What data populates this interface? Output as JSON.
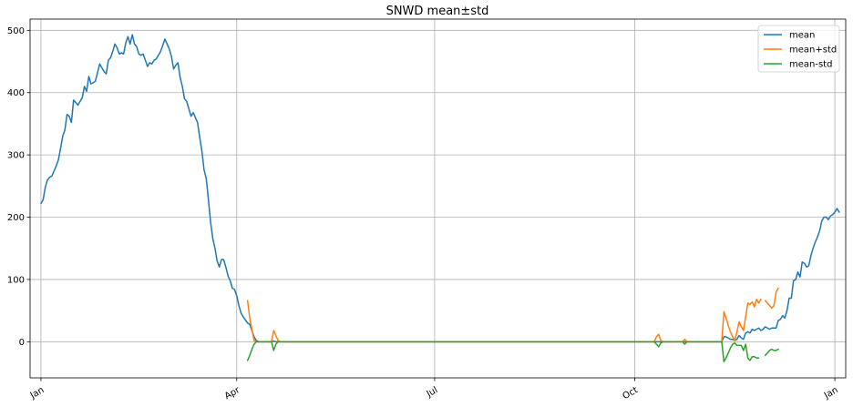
{
  "chart_data": {
    "type": "line",
    "title": "SNWD mean±std",
    "xlabel": "",
    "ylabel": "",
    "x_unit": "day_of_year",
    "xlim": [
      -5,
      370
    ],
    "ylim": [
      -58,
      518
    ],
    "grid": true,
    "legend_position": "top-right",
    "x_ticks": [
      {
        "label": "Jan",
        "x": 0
      },
      {
        "label": "Apr",
        "x": 90
      },
      {
        "label": "Jul",
        "x": 181
      },
      {
        "label": "Oct",
        "x": 273
      },
      {
        "label": "Jan",
        "x": 365
      }
    ],
    "y_ticks": [
      {
        "label": "0",
        "value": 0
      },
      {
        "label": "100",
        "value": 100
      },
      {
        "label": "200",
        "value": 200
      },
      {
        "label": "300",
        "value": 300
      },
      {
        "label": "400",
        "value": 400
      },
      {
        "label": "500",
        "value": 500
      }
    ],
    "series": [
      {
        "name": "mean",
        "color": "#1f77b4",
        "points": [
          [
            0,
            222
          ],
          [
            1,
            228
          ],
          [
            2,
            248
          ],
          [
            3,
            260
          ],
          [
            4,
            264
          ],
          [
            5,
            266
          ],
          [
            6,
            274
          ],
          [
            7,
            282
          ],
          [
            8,
            292
          ],
          [
            9,
            310
          ],
          [
            10,
            330
          ],
          [
            11,
            340
          ],
          [
            12,
            365
          ],
          [
            13,
            362
          ],
          [
            14,
            352
          ],
          [
            15,
            388
          ],
          [
            16,
            384
          ],
          [
            17,
            380
          ],
          [
            18,
            386
          ],
          [
            19,
            392
          ],
          [
            20,
            410
          ],
          [
            21,
            402
          ],
          [
            22,
            426
          ],
          [
            23,
            414
          ],
          [
            24,
            416
          ],
          [
            25,
            418
          ],
          [
            26,
            432
          ],
          [
            27,
            446
          ],
          [
            28,
            440
          ],
          [
            29,
            434
          ],
          [
            30,
            430
          ],
          [
            31,
            452
          ],
          [
            32,
            456
          ],
          [
            33,
            466
          ],
          [
            34,
            478
          ],
          [
            35,
            472
          ],
          [
            36,
            462
          ],
          [
            37,
            464
          ],
          [
            38,
            462
          ],
          [
            39,
            480
          ],
          [
            40,
            490
          ],
          [
            41,
            478
          ],
          [
            42,
            493
          ],
          [
            43,
            478
          ],
          [
            44,
            474
          ],
          [
            45,
            462
          ],
          [
            46,
            460
          ],
          [
            47,
            462
          ],
          [
            48,
            452
          ],
          [
            49,
            442
          ],
          [
            50,
            448
          ],
          [
            51,
            446
          ],
          [
            52,
            452
          ],
          [
            53,
            454
          ],
          [
            54,
            460
          ],
          [
            55,
            466
          ],
          [
            56,
            476
          ],
          [
            57,
            486
          ],
          [
            58,
            478
          ],
          [
            59,
            470
          ],
          [
            60,
            458
          ],
          [
            61,
            438
          ],
          [
            62,
            444
          ],
          [
            63,
            448
          ],
          [
            64,
            424
          ],
          [
            65,
            410
          ],
          [
            66,
            390
          ],
          [
            67,
            386
          ],
          [
            68,
            374
          ],
          [
            69,
            362
          ],
          [
            70,
            368
          ],
          [
            71,
            360
          ],
          [
            72,
            352
          ],
          [
            73,
            328
          ],
          [
            74,
            306
          ],
          [
            75,
            276
          ],
          [
            76,
            262
          ],
          [
            77,
            228
          ],
          [
            78,
            192
          ],
          [
            79,
            166
          ],
          [
            80,
            150
          ],
          [
            81,
            130
          ],
          [
            82,
            120
          ],
          [
            83,
            132
          ],
          [
            84,
            132
          ],
          [
            85,
            120
          ],
          [
            86,
            106
          ],
          [
            87,
            98
          ],
          [
            88,
            86
          ],
          [
            89,
            84
          ],
          [
            90,
            74
          ],
          [
            91,
            58
          ],
          [
            92,
            46
          ],
          [
            93,
            40
          ],
          [
            94,
            35
          ],
          [
            95,
            30
          ],
          [
            96,
            28
          ],
          [
            97,
            18
          ],
          [
            98,
            8
          ],
          [
            99,
            2
          ],
          [
            100,
            0
          ],
          [
            101,
            0
          ],
          [
            102,
            0
          ],
          [
            103,
            0
          ],
          [
            104,
            0
          ],
          [
            105,
            0
          ],
          [
            106,
            0
          ],
          [
            107,
            1
          ],
          [
            108,
            0
          ],
          [
            109,
            0
          ],
          [
            110,
            0
          ],
          [
            111,
            0
          ],
          [
            112,
            0
          ],
          [
            113,
            0
          ],
          [
            120,
            0
          ],
          [
            150,
            0
          ],
          [
            180,
            0
          ],
          [
            210,
            0
          ],
          [
            240,
            0
          ],
          [
            270,
            0
          ],
          [
            280,
            0
          ],
          [
            285,
            0
          ],
          [
            300,
            0
          ],
          [
            305,
            0
          ],
          [
            306,
            0
          ],
          [
            307,
            0
          ],
          [
            308,
            0
          ],
          [
            309,
            0
          ],
          [
            310,
            0
          ],
          [
            311,
            0
          ],
          [
            312,
            0
          ],
          [
            313,
            0
          ],
          [
            314,
            8
          ],
          [
            315,
            8
          ],
          [
            316,
            6
          ],
          [
            317,
            4
          ],
          [
            318,
            4
          ],
          [
            319,
            2
          ],
          [
            320,
            4
          ],
          [
            321,
            10
          ],
          [
            322,
            6
          ],
          [
            323,
            4
          ],
          [
            324,
            14
          ],
          [
            325,
            16
          ],
          [
            326,
            14
          ],
          [
            327,
            20
          ],
          [
            328,
            18
          ],
          [
            329,
            20
          ],
          [
            330,
            22
          ],
          [
            331,
            18
          ],
          [
            332,
            20
          ],
          [
            333,
            24
          ],
          [
            334,
            22
          ],
          [
            335,
            20
          ],
          [
            336,
            22
          ],
          [
            337,
            22
          ],
          [
            338,
            22
          ],
          [
            339,
            34
          ],
          [
            340,
            36
          ],
          [
            341,
            42
          ],
          [
            342,
            38
          ],
          [
            343,
            50
          ],
          [
            344,
            70
          ],
          [
            345,
            70
          ],
          [
            346,
            98
          ],
          [
            347,
            100
          ],
          [
            348,
            112
          ],
          [
            349,
            104
          ],
          [
            350,
            128
          ],
          [
            351,
            126
          ],
          [
            352,
            120
          ],
          [
            353,
            122
          ],
          [
            354,
            138
          ],
          [
            355,
            150
          ],
          [
            356,
            160
          ],
          [
            357,
            168
          ],
          [
            358,
            178
          ],
          [
            359,
            194
          ],
          [
            360,
            200
          ],
          [
            361,
            200
          ],
          [
            362,
            196
          ],
          [
            363,
            202
          ],
          [
            364,
            204
          ],
          [
            365,
            208
          ],
          [
            366,
            214
          ],
          [
            367,
            208
          ]
        ]
      },
      {
        "name": "mean+std",
        "color": "#ff7f0e",
        "segments": [
          [
            [
              95,
              66
            ],
            [
              96,
              38
            ],
            [
              97,
              20
            ],
            [
              98,
              2
            ],
            [
              99,
              0
            ],
            [
              106,
              0
            ],
            [
              107,
              18
            ],
            [
              108,
              10
            ],
            [
              109,
              2
            ],
            [
              110,
              0
            ],
            [
              120,
              0
            ],
            [
              150,
              0
            ],
            [
              180,
              0
            ],
            [
              210,
              0
            ],
            [
              240,
              0
            ],
            [
              270,
              0
            ],
            [
              282,
              0
            ],
            [
              283,
              8
            ],
            [
              284,
              12
            ],
            [
              285,
              2
            ],
            [
              286,
              0
            ],
            [
              295,
              0
            ],
            [
              296,
              4
            ],
            [
              297,
              0
            ],
            [
              298,
              0
            ],
            [
              300,
              0
            ],
            [
              305,
              0
            ],
            [
              306,
              0
            ],
            [
              307,
              0
            ],
            [
              308,
              0
            ],
            [
              309,
              0
            ],
            [
              310,
              0
            ],
            [
              311,
              0
            ],
            [
              312,
              0
            ],
            [
              313,
              0
            ],
            [
              314,
              48
            ],
            [
              315,
              38
            ],
            [
              316,
              26
            ],
            [
              317,
              16
            ],
            [
              318,
              8
            ],
            [
              319,
              2
            ],
            [
              320,
              16
            ],
            [
              321,
              32
            ],
            [
              322,
              24
            ],
            [
              323,
              18
            ],
            [
              324,
              40
            ],
            [
              325,
              62
            ],
            [
              326,
              60
            ],
            [
              327,
              64
            ],
            [
              328,
              56
            ],
            [
              329,
              68
            ],
            [
              330,
              62
            ],
            [
              331,
              68
            ]
          ],
          [
            [
              333,
              66
            ],
            [
              334,
              62
            ],
            [
              335,
              58
            ],
            [
              336,
              54
            ],
            [
              337,
              58
            ],
            [
              338,
              80
            ],
            [
              339,
              86
            ]
          ]
        ]
      },
      {
        "name": "mean-std",
        "color": "#2ca02c",
        "segments": [
          [
            [
              95,
              -30
            ],
            [
              96,
              -22
            ],
            [
              97,
              -12
            ],
            [
              98,
              -4
            ],
            [
              99,
              0
            ],
            [
              106,
              0
            ],
            [
              107,
              -14
            ],
            [
              108,
              -4
            ],
            [
              109,
              0
            ],
            [
              110,
              0
            ],
            [
              120,
              0
            ],
            [
              150,
              0
            ],
            [
              180,
              0
            ],
            [
              210,
              0
            ],
            [
              240,
              0
            ],
            [
              270,
              0
            ],
            [
              282,
              0
            ],
            [
              283,
              -4
            ],
            [
              284,
              -8
            ],
            [
              285,
              -2
            ],
            [
              286,
              0
            ],
            [
              295,
              0
            ],
            [
              296,
              -4
            ],
            [
              297,
              0
            ],
            [
              298,
              0
            ],
            [
              300,
              0
            ],
            [
              305,
              0
            ],
            [
              306,
              0
            ],
            [
              307,
              0
            ],
            [
              308,
              0
            ],
            [
              309,
              0
            ],
            [
              310,
              0
            ],
            [
              311,
              0
            ],
            [
              312,
              0
            ],
            [
              313,
              0
            ],
            [
              314,
              -32
            ],
            [
              315,
              -26
            ],
            [
              316,
              -18
            ],
            [
              317,
              -10
            ],
            [
              318,
              -4
            ],
            [
              319,
              -2
            ],
            [
              320,
              -6
            ],
            [
              321,
              -6
            ],
            [
              322,
              -6
            ],
            [
              323,
              -14
            ],
            [
              324,
              -4
            ],
            [
              325,
              -26
            ],
            [
              326,
              -30
            ],
            [
              327,
              -24
            ],
            [
              328,
              -24
            ],
            [
              329,
              -26
            ],
            [
              330,
              -26
            ]
          ],
          [
            [
              333,
              -22
            ],
            [
              334,
              -18
            ],
            [
              335,
              -14
            ],
            [
              336,
              -12
            ],
            [
              337,
              -14
            ],
            [
              338,
              -14
            ],
            [
              339,
              -12
            ]
          ]
        ]
      }
    ]
  }
}
